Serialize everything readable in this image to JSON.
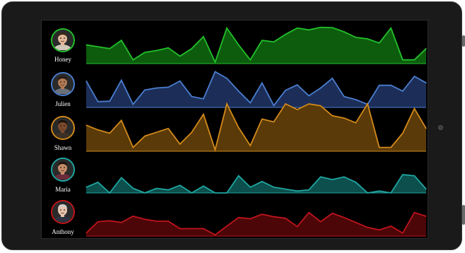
{
  "chart_data": {
    "type": "area",
    "x": [
      0,
      1,
      2,
      3,
      4,
      5,
      6,
      7,
      8,
      9,
      10,
      11,
      12,
      13,
      14,
      15,
      16,
      17,
      18,
      19,
      20,
      21,
      22,
      23,
      24,
      25,
      26,
      27,
      28,
      29
    ],
    "ylim": [
      0,
      100
    ],
    "grid": false,
    "series": [
      {
        "name": "Honey",
        "color": "#22c02a",
        "fill": "#0d5c0e",
        "values": [
          50,
          45,
          40,
          62,
          10,
          30,
          35,
          42,
          20,
          40,
          72,
          4,
          95,
          50,
          10,
          62,
          58,
          78,
          95,
          90,
          97,
          96,
          85,
          70,
          66,
          55,
          95,
          10,
          10,
          40
        ]
      },
      {
        "name": "Julien",
        "color": "#4a7ed0",
        "fill": "#1c2e58",
        "values": [
          68,
          15,
          16,
          70,
          8,
          45,
          50,
          52,
          68,
          28,
          22,
          92,
          75,
          42,
          12,
          63,
          5,
          44,
          58,
          30,
          50,
          75,
          28,
          20,
          8,
          57,
          57,
          42,
          80,
          63
        ]
      },
      {
        "name": "Shawn",
        "color": "#d38a1a",
        "fill": "#5a3a09",
        "values": [
          55,
          45,
          38,
          65,
          8,
          32,
          40,
          48,
          15,
          40,
          78,
          3,
          100,
          50,
          12,
          68,
          62,
          100,
          88,
          100,
          96,
          75,
          70,
          60,
          100,
          8,
          8,
          38,
          90,
          48
        ]
      },
      {
        "name": "Maria",
        "color": "#1fa6a2",
        "fill": "#0c4f4c",
        "values": [
          15,
          28,
          0,
          40,
          12,
          0,
          12,
          8,
          20,
          0,
          18,
          0,
          0,
          45,
          15,
          30,
          15,
          10,
          5,
          8,
          42,
          35,
          42,
          28,
          0,
          5,
          0,
          48,
          45,
          10
        ]
      },
      {
        "name": "Anthony",
        "color": "#c0141c",
        "fill": "#4c0608",
        "values": [
          12,
          58,
          62,
          55,
          80,
          68,
          60,
          60,
          30,
          30,
          30,
          5,
          40,
          75,
          70,
          88,
          78,
          72,
          38,
          95,
          58,
          92,
          75,
          55,
          35,
          25,
          40,
          12,
          95,
          80
        ]
      }
    ]
  },
  "people": [
    {
      "name": "Honey",
      "border": "#22c02a",
      "skin": "#e2b79a",
      "hair": "#3a2516",
      "shirt": "#cfc7b8"
    },
    {
      "name": "Julien",
      "border": "#4a7ed0",
      "skin": "#b07a55",
      "hair": "#241812",
      "shirt": "#6b6f78"
    },
    {
      "name": "Shawn",
      "border": "#d38a1a",
      "skin": "#7a4a2c",
      "hair": "#1a110b",
      "shirt": "#3b3026"
    },
    {
      "name": "Maria",
      "border": "#1fa6a2",
      "skin": "#c48c68",
      "hair": "#1c130c",
      "shirt": "#6a2a3a"
    },
    {
      "name": "Anthony",
      "border": "#c0141c",
      "skin": "#e8c4ae",
      "hair": "#cfcfcf",
      "shirt": "#2d3140"
    }
  ]
}
